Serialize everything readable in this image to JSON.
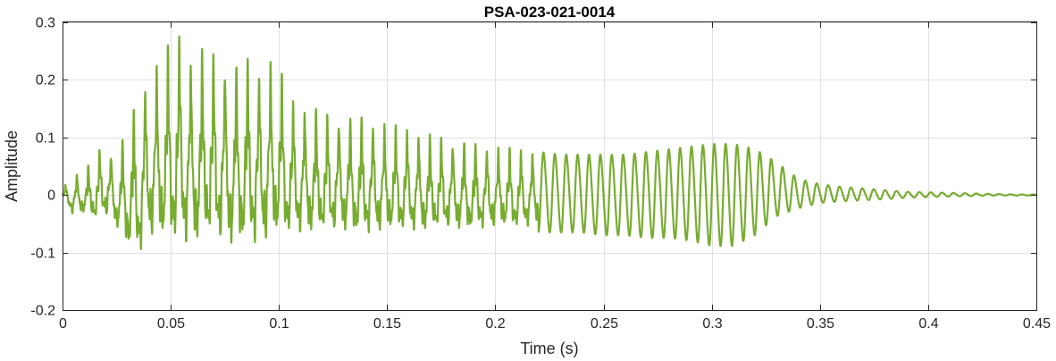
{
  "chart_data": {
    "type": "line",
    "title": "PSA-023-021-0014",
    "xlabel": "Time (s)",
    "ylabel": "Amplitude",
    "xlim": [
      0,
      0.45
    ],
    "ylim": [
      -0.2,
      0.3
    ],
    "xticks": [
      0,
      0.05,
      0.1,
      0.15,
      0.2,
      0.25,
      0.3,
      0.35,
      0.4,
      0.45
    ],
    "xtick_labels": [
      "0",
      "0.05",
      "0.1",
      "0.15",
      "0.2",
      "0.25",
      "0.3",
      "0.35",
      "0.4",
      "0.45"
    ],
    "yticks": [
      -0.2,
      -0.1,
      0,
      0.1,
      0.2,
      0.3
    ],
    "ytick_labels": [
      "-0.2",
      "-0.1",
      "0",
      "0.1",
      "0.2",
      "0.3"
    ],
    "grid": true,
    "line_color": "#77ac30",
    "series": [
      {
        "name": "",
        "envelope": {
          "t": [
            0,
            0.005,
            0.01,
            0.015,
            0.02,
            0.025,
            0.03,
            0.035,
            0.04,
            0.045,
            0.05,
            0.055,
            0.06,
            0.065,
            0.07,
            0.075,
            0.08,
            0.085,
            0.09,
            0.095,
            0.1,
            0.105,
            0.11,
            0.12,
            0.13,
            0.14,
            0.15,
            0.16,
            0.17,
            0.18,
            0.19,
            0.2,
            0.21,
            0.22,
            0.23,
            0.24,
            0.25,
            0.26,
            0.27,
            0.28,
            0.29,
            0.3,
            0.31,
            0.32,
            0.33,
            0.34,
            0.35,
            0.36,
            0.37,
            0.38,
            0.39,
            0.4,
            0.41,
            0.42,
            0.43,
            0.44,
            0.45
          ],
          "max": [
            0.01,
            0.04,
            0.04,
            0.07,
            0.095,
            0.06,
            0.135,
            0.16,
            0.225,
            0.23,
            0.27,
            0.285,
            0.24,
            0.255,
            0.25,
            0.24,
            0.23,
            0.24,
            0.225,
            0.24,
            0.225,
            0.17,
            0.16,
            0.145,
            0.14,
            0.135,
            0.125,
            0.115,
            0.105,
            0.1,
            0.09,
            0.085,
            0.08,
            0.08,
            0.075,
            0.075,
            0.075,
            0.075,
            0.08,
            0.085,
            0.09,
            0.095,
            0.095,
            0.085,
            0.06,
            0.03,
            0.02,
            0.015,
            0.012,
            0.009,
            0.006,
            0.005,
            0.004,
            0.003,
            0.002,
            0.001,
            0.001
          ],
          "min": [
            -0.01,
            -0.045,
            -0.04,
            -0.06,
            -0.055,
            -0.07,
            -0.12,
            -0.14,
            -0.115,
            -0.12,
            -0.13,
            -0.13,
            -0.13,
            -0.12,
            -0.125,
            -0.13,
            -0.13,
            -0.12,
            -0.13,
            -0.125,
            -0.11,
            -0.1,
            -0.095,
            -0.095,
            -0.09,
            -0.095,
            -0.09,
            -0.085,
            -0.085,
            -0.08,
            -0.08,
            -0.075,
            -0.075,
            -0.07,
            -0.07,
            -0.07,
            -0.075,
            -0.075,
            -0.08,
            -0.08,
            -0.085,
            -0.095,
            -0.095,
            -0.075,
            -0.04,
            -0.025,
            -0.015,
            -0.012,
            -0.01,
            -0.008,
            -0.005,
            -0.004,
            -0.003,
            -0.002,
            -0.001,
            -0.001,
            -0.001
          ]
        }
      }
    ]
  }
}
